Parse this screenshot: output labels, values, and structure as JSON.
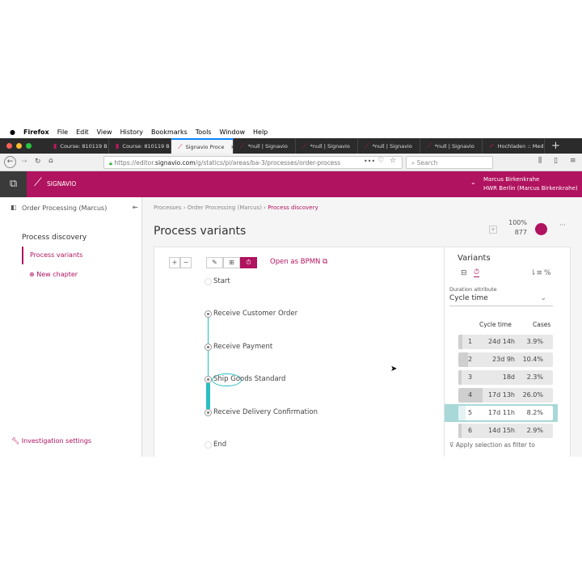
{
  "menubar": {
    "app": "Firefox",
    "items": [
      "File",
      "Edit",
      "View",
      "History",
      "Bookmarks",
      "Tools",
      "Window",
      "Help"
    ]
  },
  "tabs": [
    {
      "label": "Course: 810119 B"
    },
    {
      "label": "Course: 810119 B"
    },
    {
      "label": "Signavio Proce",
      "active": true
    },
    {
      "label": "*null | Signavio"
    },
    {
      "label": "*null | Signavio"
    },
    {
      "label": "*null | Signavio"
    },
    {
      "label": "*null | Signavio"
    },
    {
      "label": "Hochladen :: Med"
    }
  ],
  "browser": {
    "url_pre": "https://editor.",
    "url_domain": "signavio.com",
    "url_post": "/g/statics/pi/areas/ba-3/processes/order-process",
    "search_placeholder": "Search"
  },
  "header": {
    "brand": "SIGNAVIO",
    "user_name": "Marcus Birkenkrahe",
    "user_org": "HWR Berlin (Marcus Birkenkrahe)",
    "brand_color": "#b0135f"
  },
  "sidebar": {
    "project": "Order Processing (Marcus)",
    "section": "Process discovery",
    "active_item": "Process variants",
    "new_chapter": "New chapter",
    "settings": "Investigation settings"
  },
  "breadcrumb": [
    "Processes",
    "Order Processing (Marcus)",
    "Process discovery"
  ],
  "page": {
    "title": "Process variants",
    "percent": "100%",
    "count": "877"
  },
  "toolbar": {
    "open_bpmn": "Open as BPMN"
  },
  "process_map": {
    "nodes": [
      "Start",
      "Receive Customer Order",
      "Receive Payment",
      "Ship Goods Standard",
      "Receive Delivery Confirmation",
      "End"
    ],
    "accent": "#2bbfbf"
  },
  "variants": {
    "title": "Variants",
    "duration_label": "Duration attribute",
    "duration_value": "Cycle time",
    "col_time": "Cycle time",
    "col_cases": "Cases",
    "rows": [
      {
        "n": "1",
        "time": "24d 14h",
        "cases": "3.9%",
        "share": 3.9
      },
      {
        "n": "2",
        "time": "23d 9h",
        "cases": "10.4%",
        "share": 10.4
      },
      {
        "n": "3",
        "time": "18d",
        "cases": "2.3%",
        "share": 2.3
      },
      {
        "n": "4",
        "time": "17d 13h",
        "cases": "26.0%",
        "share": 26.0
      },
      {
        "n": "5",
        "time": "17d 11h",
        "cases": "8.2%",
        "share": 8.2,
        "selected": true
      },
      {
        "n": "6",
        "time": "14d 15h",
        "cases": "2.9%",
        "share": 2.9
      }
    ],
    "apply_filter": "Apply selection as filter to"
  }
}
